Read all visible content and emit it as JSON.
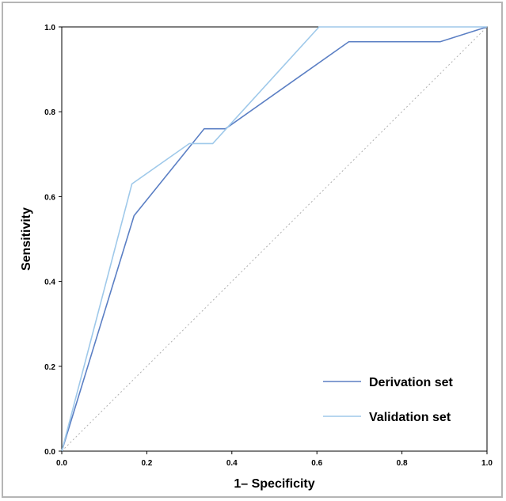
{
  "chart_data": {
    "type": "line",
    "xlabel": "1– Specificity",
    "ylabel": "Sensitivity",
    "xlim": [
      0,
      1
    ],
    "ylim": [
      0,
      1
    ],
    "xticks": [
      "0.0",
      "0.2",
      "0.4",
      "0.6",
      "0.8",
      "1.0"
    ],
    "yticks": [
      "0.0",
      "0.2",
      "0.4",
      "0.6",
      "0.8",
      "1.0"
    ],
    "grid": false,
    "legend_position": "bottom-right",
    "reference_line": {
      "style": "dotted",
      "points": [
        [
          0,
          0
        ],
        [
          1,
          1
        ]
      ],
      "color": "#b0b0b0"
    },
    "series": [
      {
        "name": "Derivation set",
        "color": "#5b7fc4",
        "points": [
          [
            0,
            0
          ],
          [
            0.17,
            0.555
          ],
          [
            0.335,
            0.76
          ],
          [
            0.385,
            0.76
          ],
          [
            0.675,
            0.965
          ],
          [
            0.89,
            0.965
          ],
          [
            1.0,
            1.0
          ]
        ]
      },
      {
        "name": "Validation set",
        "color": "#9fc9ea",
        "points": [
          [
            0,
            0
          ],
          [
            0.165,
            0.63
          ],
          [
            0.3,
            0.725
          ],
          [
            0.355,
            0.725
          ],
          [
            0.605,
            1.0
          ],
          [
            1.0,
            1.0
          ]
        ]
      }
    ]
  }
}
